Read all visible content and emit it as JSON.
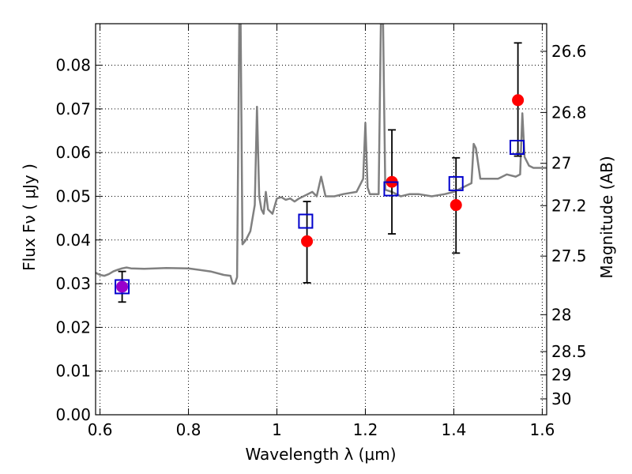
{
  "chart_data": {
    "type": "scatter",
    "title": "",
    "xlabel": "Wavelength  λ (μm)",
    "ylabel": "Flux  Fν ( μJy )",
    "y2label": "Magnitude (AB)",
    "xlim": [
      0.59,
      1.61
    ],
    "ylim": [
      0.0,
      0.0895
    ],
    "x_ticks": [
      0.6,
      0.8,
      1.0,
      1.2,
      1.4,
      1.6
    ],
    "x_tick_labels": [
      "0.6",
      "0.8",
      "1",
      "1.2",
      "1.4",
      "1.6"
    ],
    "y_ticks": [
      0.0,
      0.01,
      0.02,
      0.03,
      0.04,
      0.05,
      0.06,
      0.07,
      0.08
    ],
    "y_tick_labels": [
      "0.00",
      "0.01",
      "0.02",
      "0.03",
      "0.04",
      "0.05",
      "0.06",
      "0.07",
      "0.08"
    ],
    "magnitude_ticks": [
      {
        "label": "26.6",
        "mag": 26.6
      },
      {
        "label": "26.8",
        "mag": 26.8
      },
      {
        "label": "27",
        "mag": 27.0
      },
      {
        "label": "27.2",
        "mag": 27.2
      },
      {
        "label": "27.5",
        "mag": 27.5
      },
      {
        "label": "28",
        "mag": 28.0
      },
      {
        "label": "28.5",
        "mag": 28.5
      },
      {
        "label": "29",
        "mag": 29.0
      },
      {
        "label": "30",
        "mag": 30.0
      }
    ],
    "grid": true,
    "colors": {
      "spectrum": "#808080",
      "observed": "#ff0000",
      "model": "#0000cc",
      "error_bar": "#000000",
      "first_point_fill": "#9900cc"
    },
    "series": [
      {
        "kind": "spectrum_line",
        "points": [
          [
            0.59,
            0.0325
          ],
          [
            0.6,
            0.032
          ],
          [
            0.61,
            0.0318
          ],
          [
            0.62,
            0.0322
          ],
          [
            0.63,
            0.0328
          ],
          [
            0.64,
            0.0332
          ],
          [
            0.65,
            0.0335
          ],
          [
            0.66,
            0.0337
          ],
          [
            0.67,
            0.0335
          ],
          [
            0.7,
            0.0334
          ],
          [
            0.75,
            0.0336
          ],
          [
            0.8,
            0.0335
          ],
          [
            0.85,
            0.0328
          ],
          [
            0.88,
            0.032
          ],
          [
            0.895,
            0.0318
          ],
          [
            0.9,
            0.03
          ],
          [
            0.905,
            0.03
          ],
          [
            0.91,
            0.0315
          ],
          [
            0.915,
            0.0895
          ],
          [
            0.918,
            0.0895
          ],
          [
            0.922,
            0.039
          ],
          [
            0.93,
            0.04
          ],
          [
            0.94,
            0.042
          ],
          [
            0.95,
            0.048
          ],
          [
            0.955,
            0.0705
          ],
          [
            0.96,
            0.05
          ],
          [
            0.965,
            0.047
          ],
          [
            0.97,
            0.046
          ],
          [
            0.975,
            0.051
          ],
          [
            0.98,
            0.047
          ],
          [
            0.99,
            0.046
          ],
          [
            1.0,
            0.0495
          ],
          [
            1.01,
            0.0498
          ],
          [
            1.02,
            0.0492
          ],
          [
            1.03,
            0.0495
          ],
          [
            1.04,
            0.0488
          ],
          [
            1.05,
            0.0495
          ],
          [
            1.06,
            0.05
          ],
          [
            1.07,
            0.0505
          ],
          [
            1.08,
            0.051
          ],
          [
            1.09,
            0.05
          ],
          [
            1.1,
            0.0545
          ],
          [
            1.11,
            0.05
          ],
          [
            1.13,
            0.05
          ],
          [
            1.15,
            0.0505
          ],
          [
            1.18,
            0.051
          ],
          [
            1.195,
            0.054
          ],
          [
            1.2,
            0.0668
          ],
          [
            1.205,
            0.052
          ],
          [
            1.21,
            0.0505
          ],
          [
            1.22,
            0.0505
          ],
          [
            1.23,
            0.0505
          ],
          [
            1.235,
            0.0895
          ],
          [
            1.24,
            0.0895
          ],
          [
            1.245,
            0.0515
          ],
          [
            1.26,
            0.051
          ],
          [
            1.28,
            0.05
          ],
          [
            1.3,
            0.0505
          ],
          [
            1.32,
            0.0505
          ],
          [
            1.35,
            0.05
          ],
          [
            1.38,
            0.0505
          ],
          [
            1.4,
            0.051
          ],
          [
            1.42,
            0.052
          ],
          [
            1.44,
            0.053
          ],
          [
            1.445,
            0.062
          ],
          [
            1.45,
            0.061
          ],
          [
            1.46,
            0.054
          ],
          [
            1.48,
            0.054
          ],
          [
            1.5,
            0.054
          ],
          [
            1.52,
            0.055
          ],
          [
            1.54,
            0.0545
          ],
          [
            1.55,
            0.055
          ],
          [
            1.555,
            0.069
          ],
          [
            1.56,
            0.059
          ],
          [
            1.57,
            0.057
          ],
          [
            1.58,
            0.0565
          ],
          [
            1.6,
            0.0565
          ],
          [
            1.61,
            0.0565
          ]
        ]
      },
      {
        "kind": "observed_points",
        "points": [
          {
            "x": 0.65,
            "y": 0.0293,
            "yerr_low": 0.0258,
            "yerr_high": 0.0328
          },
          {
            "x": 1.068,
            "y": 0.0397,
            "yerr_low": 0.0302,
            "yerr_high": 0.0488
          },
          {
            "x": 1.26,
            "y": 0.0533,
            "yerr_low": 0.0414,
            "yerr_high": 0.0652
          },
          {
            "x": 1.405,
            "y": 0.048,
            "yerr_low": 0.037,
            "yerr_high": 0.0588
          },
          {
            "x": 1.545,
            "y": 0.072,
            "yerr_low": 0.0592,
            "yerr_high": 0.0851
          }
        ]
      },
      {
        "kind": "model_squares",
        "points": [
          {
            "x": 0.65,
            "y": 0.0293
          },
          {
            "x": 1.065,
            "y": 0.0443
          },
          {
            "x": 1.258,
            "y": 0.0517
          },
          {
            "x": 1.405,
            "y": 0.0529
          },
          {
            "x": 1.543,
            "y": 0.0612
          }
        ]
      }
    ]
  }
}
